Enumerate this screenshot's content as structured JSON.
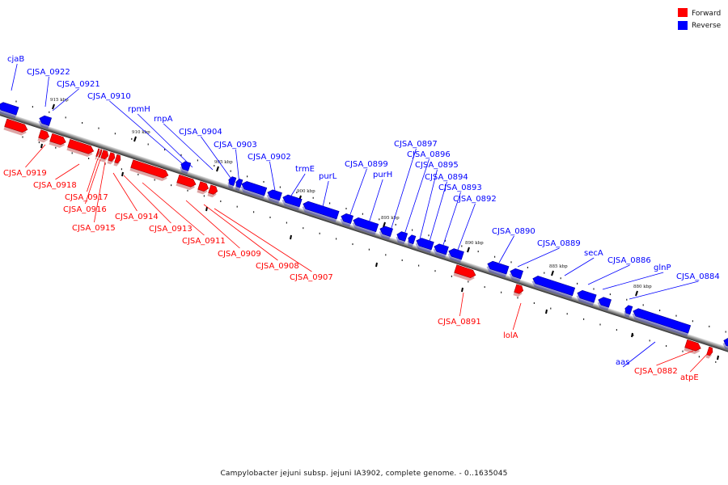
{
  "legend": {
    "forward_label": "Forward",
    "reverse_label": "Reverse",
    "forward_color": "#ff0000",
    "reverse_color": "#0000ff"
  },
  "caption": "Campylobacter jejuni subsp. jejuni IA3902, complete genome. - 0..1635045",
  "kbp_marks": [
    "915 kbp",
    "910 kbp",
    "905 kbp",
    "900 kbp",
    "895 kbp",
    "890 kbp",
    "885 kbp",
    "880 kbp"
  ],
  "reverse_genes": [
    "cjaB",
    "CJSA_0922",
    "CJSA_0921",
    "CJSA_0910",
    "rpmH",
    "rnpA",
    "CJSA_0904",
    "CJSA_0903",
    "CJSA_0902",
    "trmE",
    "purL",
    "CJSA_0899",
    "purH",
    "CJSA_0897",
    "CJSA_0896",
    "CJSA_0895",
    "CJSA_0894",
    "CJSA_0893",
    "CJSA_0892",
    "CJSA_0890",
    "CJSA_0889",
    "secA",
    "CJSA_0886",
    "glnP",
    "CJSA_0884",
    "aas"
  ],
  "forward_genes": [
    "CJSA_0919",
    "CJSA_0918",
    "CJSA_0917",
    "CJSA_0916",
    "CJSA_0915",
    "CJSA_0914",
    "CJSA_0913",
    "CJSA_0911",
    "CJSA_0909",
    "CJSA_0908",
    "CJSA_0907",
    "CJSA_0891",
    "lolA",
    "CJSA_0882",
    "atpE"
  ]
}
